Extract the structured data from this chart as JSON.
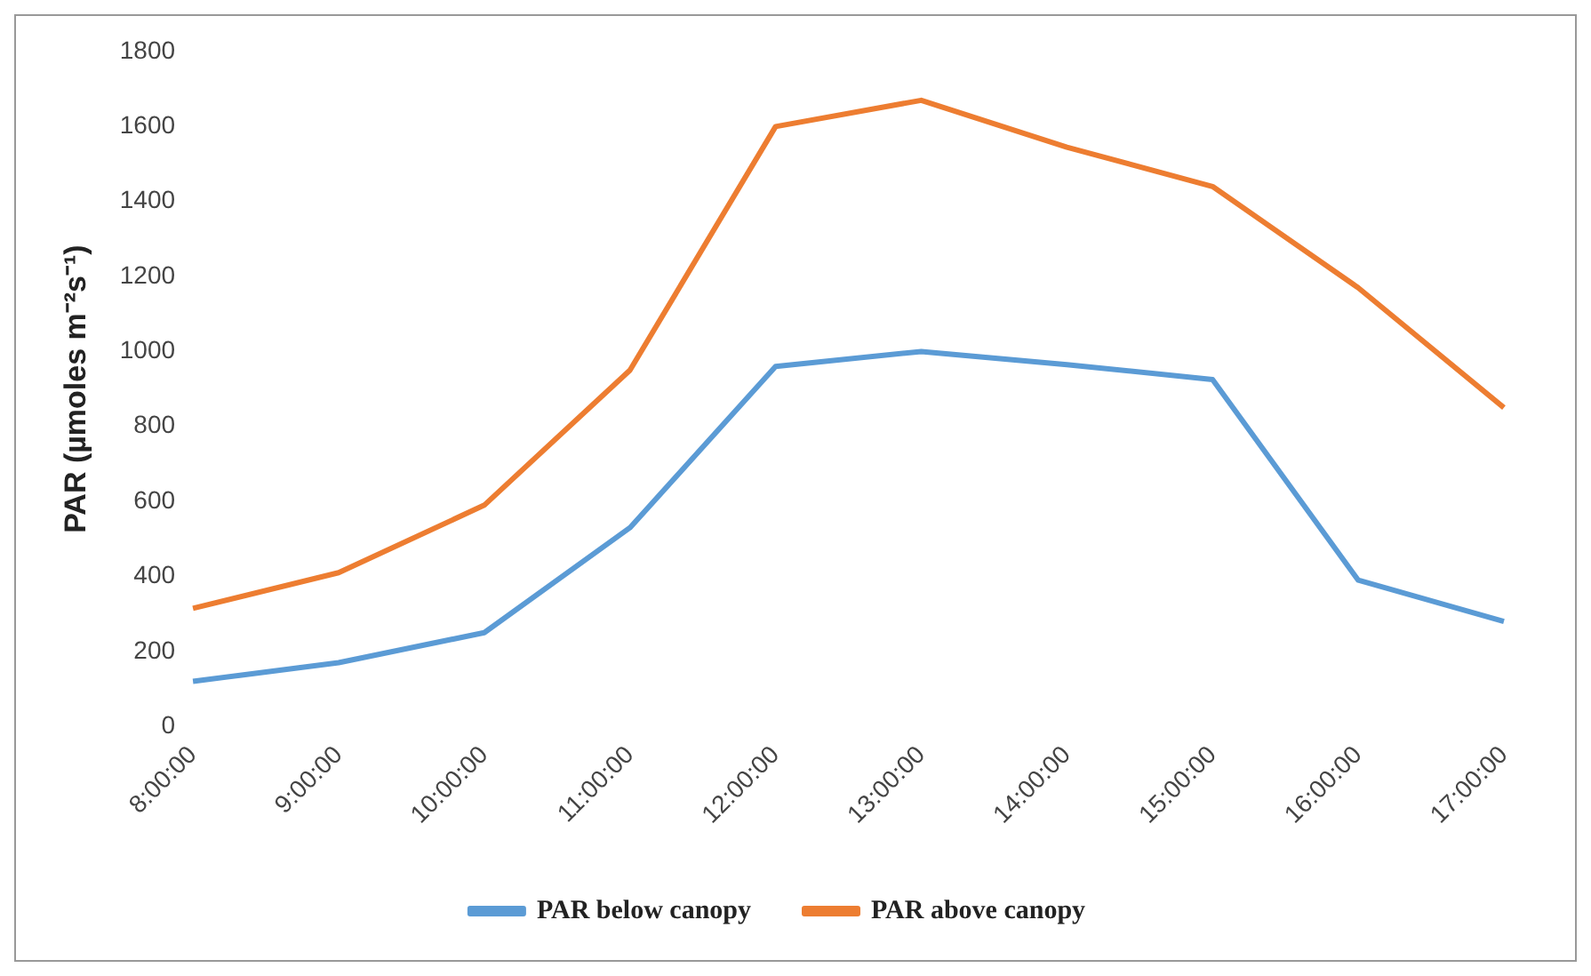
{
  "chart_data": {
    "type": "line",
    "ylabel": "PAR (µmoles m⁻²s⁻¹)",
    "categories": [
      "8:00:00",
      "9:00:00",
      "10:00:00",
      "11:00:00",
      "12:00:00",
      "13:00:00",
      "14:00:00",
      "15:00:00",
      "16:00:00",
      "17:00:00"
    ],
    "series": [
      {
        "name": "PAR below canopy",
        "color": "#5b9bd5",
        "values": [
          120,
          170,
          250,
          530,
          960,
          1000,
          965,
          925,
          390,
          280
        ]
      },
      {
        "name": "PAR above canopy",
        "color": "#ed7d31",
        "values": [
          315,
          410,
          590,
          950,
          1600,
          1670,
          1545,
          1440,
          1170,
          850
        ]
      }
    ],
    "ylim": [
      0,
      1800
    ],
    "yticks": [
      0,
      200,
      400,
      600,
      800,
      1000,
      1200,
      1400,
      1600,
      1800
    ],
    "grid": false,
    "legend": "bottom",
    "marker": "none",
    "line_style": "solid"
  }
}
